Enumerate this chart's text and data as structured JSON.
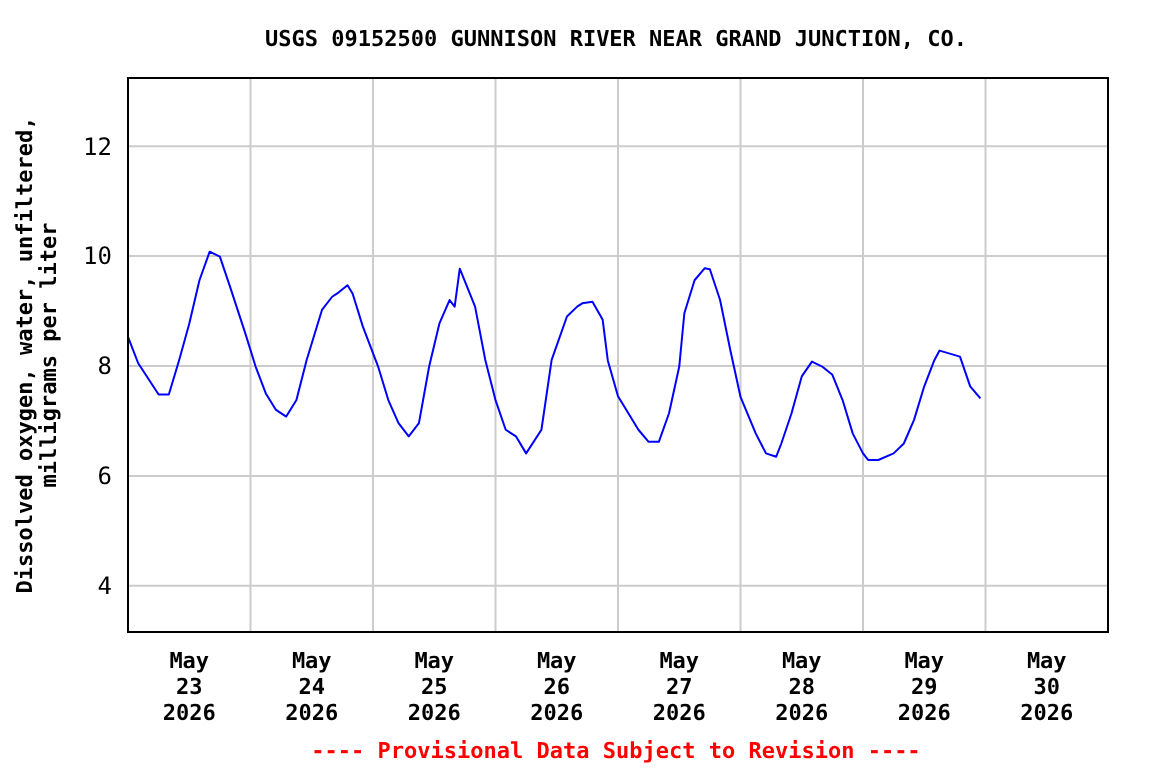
{
  "chart_data": {
    "type": "line",
    "title": "USGS 09152500 GUNNISON RIVER NEAR GRAND JUNCTION, CO.",
    "ylabel": "Dissolved oxygen, water, unfiltered,\nmilligrams per liter",
    "annotations": [
      "---- Provisional Data Subject to Revision ----"
    ],
    "xlim": [
      "2026-05-23T00:00",
      "2026-05-31T00:00"
    ],
    "xticks": [
      {
        "value": "2026-05-23T12:00",
        "label": "May\n23\n2026"
      },
      {
        "value": "2026-05-24T00:00",
        "label": null
      },
      {
        "value": "2026-05-24T12:00",
        "label": "May\n24\n2026"
      },
      {
        "value": "2026-05-25T00:00",
        "label": null
      },
      {
        "value": "2026-05-25T12:00",
        "label": "May\n25\n2026"
      },
      {
        "value": "2026-05-26T00:00",
        "label": null
      },
      {
        "value": "2026-05-26T12:00",
        "label": "May\n26\n2026"
      },
      {
        "value": "2026-05-27T00:00",
        "label": null
      },
      {
        "value": "2026-05-27T12:00",
        "label": "May\n27\n2026"
      },
      {
        "value": "2026-05-28T00:00",
        "label": null
      },
      {
        "value": "2026-05-28T12:00",
        "label": "May\n28\n2026"
      },
      {
        "value": "2026-05-29T00:00",
        "label": null
      },
      {
        "value": "2026-05-29T12:00",
        "label": "May\n29\n2026"
      },
      {
        "value": "2026-05-30T00:00",
        "label": null
      },
      {
        "value": "2026-05-30T12:00",
        "label": "May\n30\n2026"
      }
    ],
    "ylim": [
      3.16,
      13.24
    ],
    "yticks": [
      4,
      6,
      8,
      10,
      12
    ],
    "grid": true,
    "x": [
      "2026-05-23T00:00",
      "2026-05-23T02:00",
      "2026-05-23T06:00",
      "2026-05-23T08:00",
      "2026-05-23T10:00",
      "2026-05-23T12:00",
      "2026-05-23T14:00",
      "2026-05-23T16:00",
      "2026-05-23T18:00",
      "2026-05-23T20:00",
      "2026-05-23T23:00",
      "2026-05-24T01:00",
      "2026-05-24T03:00",
      "2026-05-24T05:00",
      "2026-05-24T07:00",
      "2026-05-24T09:00",
      "2026-05-24T11:00",
      "2026-05-24T14:00",
      "2026-05-24T16:00",
      "2026-05-24T17:00",
      "2026-05-24T19:00",
      "2026-05-24T20:00",
      "2026-05-24T22:00",
      "2026-05-25T01:00",
      "2026-05-25T03:00",
      "2026-05-25T05:00",
      "2026-05-25T07:00",
      "2026-05-25T09:00",
      "2026-05-25T11:00",
      "2026-05-25T13:00",
      "2026-05-25T15:00",
      "2026-05-25T16:00",
      "2026-05-25T17:00",
      "2026-05-25T20:00",
      "2026-05-25T22:00",
      "2026-05-26T00:00",
      "2026-05-26T02:00",
      "2026-05-26T04:00",
      "2026-05-26T06:00",
      "2026-05-26T09:00",
      "2026-05-26T11:00",
      "2026-05-26T14:00",
      "2026-05-26T16:00",
      "2026-05-26T17:00",
      "2026-05-26T19:00",
      "2026-05-26T21:00",
      "2026-05-26T22:00",
      "2026-05-27T00:00",
      "2026-05-27T04:00",
      "2026-05-27T06:00",
      "2026-05-27T08:00",
      "2026-05-27T10:00",
      "2026-05-27T12:00",
      "2026-05-27T13:00",
      "2026-05-27T15:00",
      "2026-05-27T17:00",
      "2026-05-27T18:00",
      "2026-05-27T20:00",
      "2026-05-27T22:00",
      "2026-05-28T00:00",
      "2026-05-28T03:00",
      "2026-05-28T05:00",
      "2026-05-28T07:00",
      "2026-05-28T08:00",
      "2026-05-28T10:00",
      "2026-05-28T12:00",
      "2026-05-28T14:00",
      "2026-05-28T16:00",
      "2026-05-28T18:00",
      "2026-05-28T20:00",
      "2026-05-28T22:00",
      "2026-05-29T00:00",
      "2026-05-29T01:00",
      "2026-05-29T03:00",
      "2026-05-29T06:00",
      "2026-05-29T08:00",
      "2026-05-29T10:00",
      "2026-05-29T12:00",
      "2026-05-29T14:00",
      "2026-05-29T15:00",
      "2026-05-29T19:00",
      "2026-05-29T21:00",
      "2026-05-29T23:00"
    ],
    "series": [
      {
        "color": "#0000ff",
        "values": [
          8.53,
          8.05,
          7.48,
          7.48,
          8.1,
          8.77,
          9.56,
          10.08,
          9.99,
          9.44,
          8.59,
          7.99,
          7.5,
          7.2,
          7.08,
          7.38,
          8.11,
          9.02,
          9.26,
          9.32,
          9.47,
          9.32,
          8.72,
          7.99,
          7.38,
          6.96,
          6.72,
          6.96,
          7.99,
          8.77,
          9.2,
          9.08,
          9.77,
          9.08,
          8.11,
          7.38,
          6.84,
          6.72,
          6.41,
          6.84,
          8.11,
          8.9,
          9.08,
          9.14,
          9.17,
          8.84,
          8.1,
          7.45,
          6.84,
          6.62,
          6.62,
          7.14,
          7.99,
          8.96,
          9.56,
          9.78,
          9.76,
          9.2,
          8.29,
          7.44,
          6.77,
          6.41,
          6.35,
          6.59,
          7.14,
          7.81,
          8.08,
          7.99,
          7.84,
          7.38,
          6.77,
          6.41,
          6.29,
          6.29,
          6.41,
          6.59,
          7.02,
          7.63,
          8.11,
          8.28,
          8.17,
          7.63,
          7.41
        ]
      }
    ]
  }
}
